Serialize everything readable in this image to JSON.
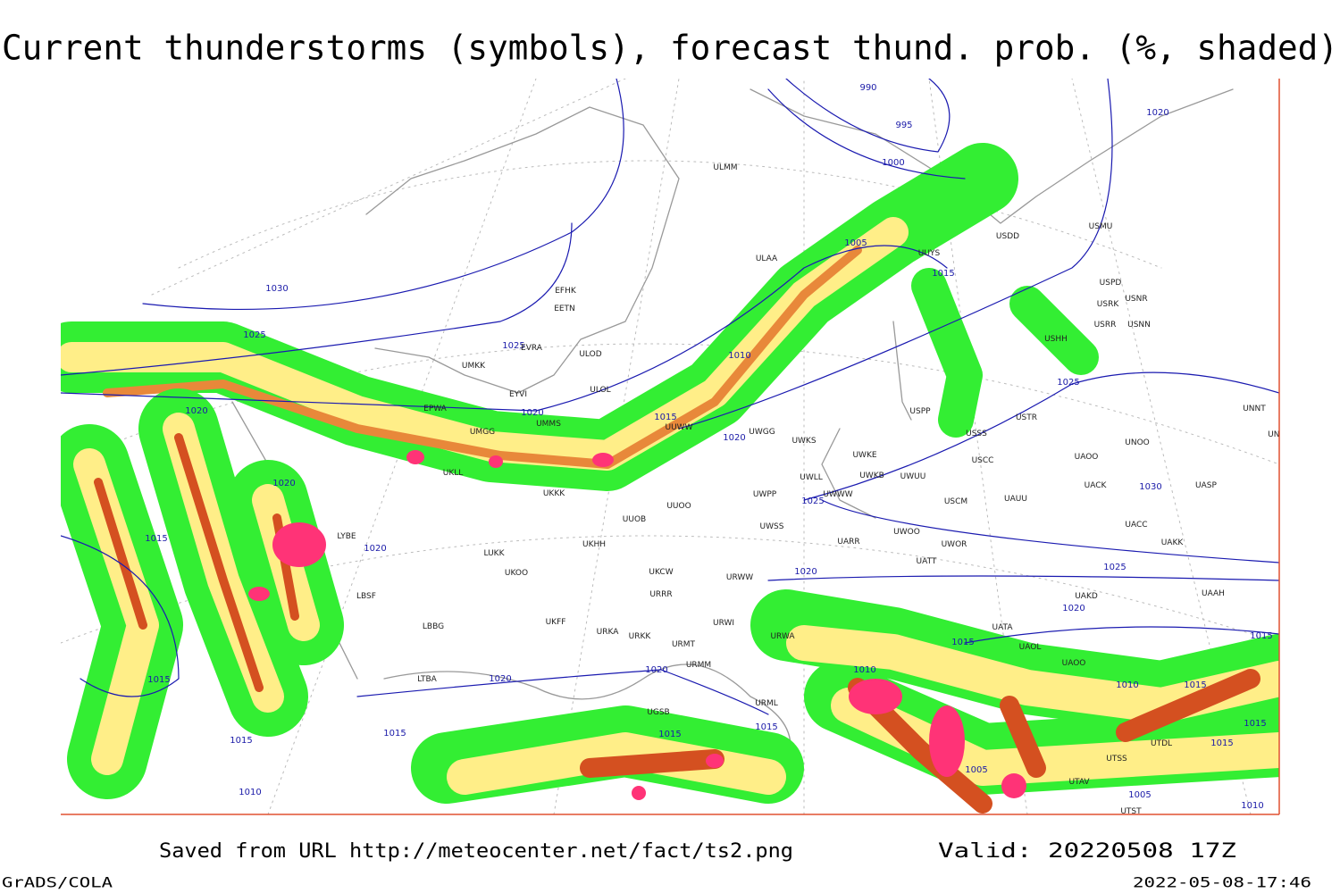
{
  "header": {
    "title": "Current thunderstorms (symbols), forecast thund. prob. (%, shaded)"
  },
  "footer": {
    "source": "Saved from URL http://meteocenter.net/fact/ts2.png",
    "valid": "Valid: 20220508 17Z",
    "credit": "GrADS/COLA",
    "timestamp": "2022-05-08-17:46"
  },
  "isobar_labels": [
    "990",
    "995",
    "1000",
    "1005",
    "1015",
    "1010",
    "1015",
    "1020",
    "1020",
    "1025",
    "1030",
    "1025",
    "1020",
    "1020",
    "1015",
    "1020",
    "1015",
    "1015",
    "1010",
    "1015",
    "1020",
    "1020",
    "1015",
    "1015",
    "1025",
    "1020",
    "1020",
    "1015",
    "1010",
    "1005",
    "1025",
    "1030",
    "1025",
    "1020",
    "1015",
    "1010",
    "1015",
    "1015",
    "1015",
    "1010",
    "1005"
  ],
  "stations": [
    "ULMM",
    "ULAA",
    "EFHK",
    "EETN",
    "EVRA",
    "ULOD",
    "ULOL",
    "EYVI",
    "UMKK",
    "EPWA",
    "UMMS",
    "UMGG",
    "UKLL",
    "UKKK",
    "UUWW",
    "UWGG",
    "UWKS",
    "UWKE",
    "UWKB",
    "UWUU",
    "USCC",
    "USCM",
    "UAUU",
    "UACK",
    "UAOO",
    "UNOO",
    "USTR",
    "USSS",
    "USPP",
    "UWLL",
    "UWWW",
    "UWPP",
    "UWSS",
    "UUOO",
    "UUOB",
    "UKHH",
    "LUKK",
    "UKOO",
    "UKCW",
    "URRR",
    "URWI",
    "UKFF",
    "URKA",
    "URKK",
    "URMT",
    "URMM",
    "URML",
    "UGSB",
    "LBBG",
    "LBSF",
    "LYBE",
    "LTBA",
    "UATT",
    "UARR",
    "UWOO",
    "UWOR",
    "UAKD",
    "UATA",
    "UAOL",
    "UAOO",
    "UACC",
    "UAKK",
    "UAAH",
    "UASP",
    "UNNT",
    "UNBB",
    "USMU",
    "USRK",
    "USRR",
    "USNN",
    "USNR",
    "USPD",
    "USHH",
    "USDD",
    "UUYS",
    "UTDL",
    "UTSS",
    "UTAV",
    "UTST",
    "URWW",
    "URWA"
  ]
}
